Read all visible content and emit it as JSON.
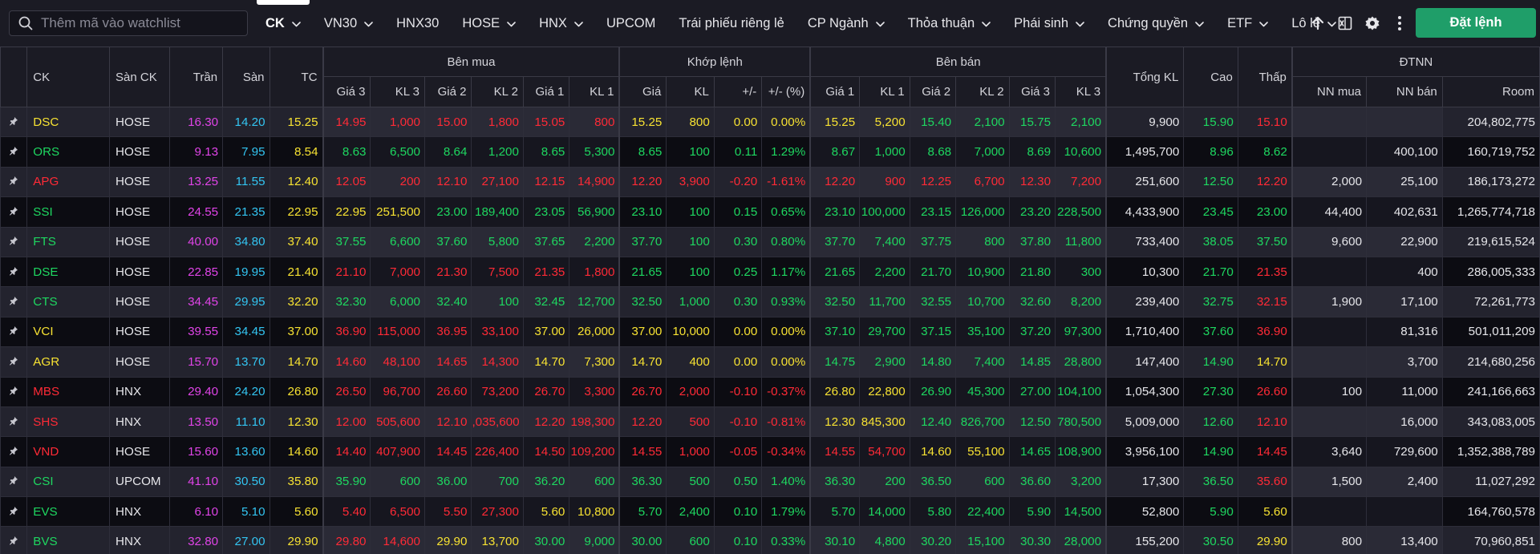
{
  "search": {
    "placeholder": "Thêm mã vào watchlist"
  },
  "tabs": [
    {
      "label": "CK",
      "dropdown": true,
      "active": true
    },
    {
      "label": "VN30",
      "dropdown": true
    },
    {
      "label": "HNX30",
      "dropdown": false
    },
    {
      "label": "HOSE",
      "dropdown": true
    },
    {
      "label": "HNX",
      "dropdown": true
    },
    {
      "label": "UPCOM",
      "dropdown": false
    },
    {
      "label": "Trái phiếu riêng lẻ",
      "dropdown": false
    },
    {
      "label": "CP Ngành",
      "dropdown": true
    },
    {
      "label": "Thỏa thuận",
      "dropdown": true
    },
    {
      "label": "Phái sinh",
      "dropdown": true
    },
    {
      "label": "Chứng quyền",
      "dropdown": true
    },
    {
      "label": "ETF",
      "dropdown": true
    },
    {
      "label": "Lô lẻ",
      "dropdown": true
    }
  ],
  "toolbar": {
    "icons": [
      "upload-arrow-icon",
      "excel-export-icon",
      "gear-icon",
      "more-vertical-icon"
    ],
    "order_label": "Đặt lệnh",
    "order_color": "#1f9e69"
  },
  "colors": {
    "up": "#1ed760",
    "down": "#ff2a36",
    "reference": "#f7e232",
    "ceiling": "#e044e8",
    "floor": "#33c5f2"
  },
  "table": {
    "group_headers": {
      "buy": "Bên mua",
      "match": "Khớp lệnh",
      "sell": "Bên bán",
      "foreign": "ĐTNN"
    },
    "columns": {
      "symbol": "CK",
      "exchange": "Sàn CK",
      "ceiling": "Trần",
      "floor": "Sàn",
      "reference": "TC",
      "buy": [
        "Giá 3",
        "KL 3",
        "Giá 2",
        "KL 2",
        "Giá 1",
        "KL 1"
      ],
      "match": [
        "Giá",
        "KL",
        "+/-",
        "+/- (%)"
      ],
      "sell": [
        "Giá 1",
        "KL 1",
        "Giá 2",
        "KL 2",
        "Giá 3",
        "KL 3"
      ],
      "total": "Tổng KL",
      "high": "Cao",
      "low": "Thấp",
      "foreign": [
        "NN mua",
        "NN bán",
        "Room"
      ]
    },
    "rows": [
      {
        "sym": "DSC",
        "exch": "HOSE",
        "ceil": "16.30",
        "floor": "14.20",
        "ref": "15.25",
        "b3p": "14.95",
        "b3v": "1,000",
        "b2p": "15.00",
        "b2v": "1,800",
        "b1p": "15.05",
        "b1v": "800",
        "mp": "15.25",
        "mv": "800",
        "chg": "0.00",
        "pct": "0.00%",
        "s1p": "15.25",
        "s1v": "5,200",
        "s2p": "15.40",
        "s2v": "2,100",
        "s3p": "15.75",
        "s3v": "2,100",
        "tot": "9,900",
        "hi": "15.90",
        "lo": "15.10",
        "nnb": "",
        "nns": "",
        "room": "204,802,775"
      },
      {
        "sym": "ORS",
        "exch": "HOSE",
        "ceil": "9.13",
        "floor": "7.95",
        "ref": "8.54",
        "b3p": "8.63",
        "b3v": "6,500",
        "b2p": "8.64",
        "b2v": "1,200",
        "b1p": "8.65",
        "b1v": "5,300",
        "mp": "8.65",
        "mv": "100",
        "chg": "0.11",
        "pct": "1.29%",
        "s1p": "8.67",
        "s1v": "1,000",
        "s2p": "8.68",
        "s2v": "7,000",
        "s3p": "8.69",
        "s3v": "10,600",
        "tot": "1,495,700",
        "hi": "8.96",
        "lo": "8.62",
        "nnb": "",
        "nns": "400,100",
        "room": "160,719,752"
      },
      {
        "sym": "APG",
        "exch": "HOSE",
        "ceil": "13.25",
        "floor": "11.55",
        "ref": "12.40",
        "b3p": "12.05",
        "b3v": "200",
        "b2p": "12.10",
        "b2v": "27,100",
        "b1p": "12.15",
        "b1v": "14,900",
        "mp": "12.20",
        "mv": "3,900",
        "chg": "-0.20",
        "pct": "-1.61%",
        "s1p": "12.20",
        "s1v": "900",
        "s2p": "12.25",
        "s2v": "6,700",
        "s3p": "12.30",
        "s3v": "7,200",
        "tot": "251,600",
        "hi": "12.50",
        "lo": "12.20",
        "nnb": "2,000",
        "nns": "25,100",
        "room": "186,173,272"
      },
      {
        "sym": "SSI",
        "exch": "HOSE",
        "ceil": "24.55",
        "floor": "21.35",
        "ref": "22.95",
        "b3p": "22.95",
        "b3v": "251,500",
        "b2p": "23.00",
        "b2v": "189,400",
        "b1p": "23.05",
        "b1v": "56,900",
        "mp": "23.10",
        "mv": "100",
        "chg": "0.15",
        "pct": "0.65%",
        "s1p": "23.10",
        "s1v": "100,000",
        "s2p": "23.15",
        "s2v": "126,000",
        "s3p": "23.20",
        "s3v": "228,500",
        "tot": "4,433,900",
        "hi": "23.45",
        "lo": "23.00",
        "nnb": "44,400",
        "nns": "402,631",
        "room": "1,265,774,718"
      },
      {
        "sym": "FTS",
        "exch": "HOSE",
        "ceil": "40.00",
        "floor": "34.80",
        "ref": "37.40",
        "b3p": "37.55",
        "b3v": "6,600",
        "b2p": "37.60",
        "b2v": "5,800",
        "b1p": "37.65",
        "b1v": "2,200",
        "mp": "37.70",
        "mv": "100",
        "chg": "0.30",
        "pct": "0.80%",
        "s1p": "37.70",
        "s1v": "7,400",
        "s2p": "37.75",
        "s2v": "800",
        "s3p": "37.80",
        "s3v": "11,800",
        "tot": "733,400",
        "hi": "38.05",
        "lo": "37.50",
        "nnb": "9,600",
        "nns": "22,900",
        "room": "219,615,524"
      },
      {
        "sym": "DSE",
        "exch": "HOSE",
        "ceil": "22.85",
        "floor": "19.95",
        "ref": "21.40",
        "b3p": "21.10",
        "b3v": "7,000",
        "b2p": "21.30",
        "b2v": "7,500",
        "b1p": "21.35",
        "b1v": "1,800",
        "mp": "21.65",
        "mv": "100",
        "chg": "0.25",
        "pct": "1.17%",
        "s1p": "21.65",
        "s1v": "2,200",
        "s2p": "21.70",
        "s2v": "10,900",
        "s3p": "21.80",
        "s3v": "300",
        "tot": "10,300",
        "hi": "21.70",
        "lo": "21.35",
        "nnb": "",
        "nns": "400",
        "room": "286,005,333"
      },
      {
        "sym": "CTS",
        "exch": "HOSE",
        "ceil": "34.45",
        "floor": "29.95",
        "ref": "32.20",
        "b3p": "32.30",
        "b3v": "6,000",
        "b2p": "32.40",
        "b2v": "100",
        "b1p": "32.45",
        "b1v": "12,700",
        "mp": "32.50",
        "mv": "1,000",
        "chg": "0.30",
        "pct": "0.93%",
        "s1p": "32.50",
        "s1v": "11,700",
        "s2p": "32.55",
        "s2v": "10,700",
        "s3p": "32.60",
        "s3v": "8,200",
        "tot": "239,400",
        "hi": "32.75",
        "lo": "32.15",
        "nnb": "1,900",
        "nns": "17,100",
        "room": "72,261,773"
      },
      {
        "sym": "VCI",
        "exch": "HOSE",
        "ceil": "39.55",
        "floor": "34.45",
        "ref": "37.00",
        "b3p": "36.90",
        "b3v": "115,000",
        "b2p": "36.95",
        "b2v": "33,100",
        "b1p": "37.00",
        "b1v": "26,000",
        "mp": "37.00",
        "mv": "10,000",
        "chg": "0.00",
        "pct": "0.00%",
        "s1p": "37.10",
        "s1v": "29,700",
        "s2p": "37.15",
        "s2v": "35,100",
        "s3p": "37.20",
        "s3v": "97,300",
        "tot": "1,710,400",
        "hi": "37.60",
        "lo": "36.90",
        "nnb": "",
        "nns": "81,316",
        "room": "501,011,209"
      },
      {
        "sym": "AGR",
        "exch": "HOSE",
        "ceil": "15.70",
        "floor": "13.70",
        "ref": "14.70",
        "b3p": "14.60",
        "b3v": "48,100",
        "b2p": "14.65",
        "b2v": "14,300",
        "b1p": "14.70",
        "b1v": "7,300",
        "mp": "14.70",
        "mv": "400",
        "chg": "0.00",
        "pct": "0.00%",
        "s1p": "14.75",
        "s1v": "2,900",
        "s2p": "14.80",
        "s2v": "7,400",
        "s3p": "14.85",
        "s3v": "28,800",
        "tot": "147,400",
        "hi": "14.90",
        "lo": "14.70",
        "nnb": "",
        "nns": "3,700",
        "room": "214,680,256"
      },
      {
        "sym": "MBS",
        "exch": "HNX",
        "ceil": "29.40",
        "floor": "24.20",
        "ref": "26.80",
        "b3p": "26.50",
        "b3v": "96,700",
        "b2p": "26.60",
        "b2v": "73,200",
        "b1p": "26.70",
        "b1v": "3,300",
        "mp": "26.70",
        "mv": "2,000",
        "chg": "-0.10",
        "pct": "-0.37%",
        "s1p": "26.80",
        "s1v": "22,800",
        "s2p": "26.90",
        "s2v": "45,300",
        "s3p": "27.00",
        "s3v": "104,100",
        "tot": "1,054,300",
        "hi": "27.30",
        "lo": "26.60",
        "nnb": "100",
        "nns": "11,000",
        "room": "241,166,663"
      },
      {
        "sym": "SHS",
        "exch": "HNX",
        "ceil": "13.50",
        "floor": "11.10",
        "ref": "12.30",
        "b3p": "12.00",
        "b3v": "505,600",
        "b2p": "12.10",
        "b2v": ",035,600",
        "b1p": "12.20",
        "b1v": "198,300",
        "mp": "12.20",
        "mv": "500",
        "chg": "-0.10",
        "pct": "-0.81%",
        "s1p": "12.30",
        "s1v": "845,300",
        "s2p": "12.40",
        "s2v": "826,700",
        "s3p": "12.50",
        "s3v": "780,500",
        "tot": "5,009,000",
        "hi": "12.60",
        "lo": "12.10",
        "nnb": "",
        "nns": "16,000",
        "room": "343,083,005"
      },
      {
        "sym": "VND",
        "exch": "HOSE",
        "ceil": "15.60",
        "floor": "13.60",
        "ref": "14.60",
        "b3p": "14.40",
        "b3v": "407,900",
        "b2p": "14.45",
        "b2v": "226,400",
        "b1p": "14.50",
        "b1v": "109,200",
        "mp": "14.55",
        "mv": "1,000",
        "chg": "-0.05",
        "pct": "-0.34%",
        "s1p": "14.55",
        "s1v": "54,700",
        "s2p": "14.60",
        "s2v": "55,100",
        "s3p": "14.65",
        "s3v": "108,900",
        "tot": "3,956,100",
        "hi": "14.90",
        "lo": "14.45",
        "nnb": "3,640",
        "nns": "729,600",
        "room": "1,352,388,789"
      },
      {
        "sym": "CSI",
        "exch": "UPCOM",
        "ceil": "41.10",
        "floor": "30.50",
        "ref": "35.80",
        "b3p": "35.90",
        "b3v": "600",
        "b2p": "36.00",
        "b2v": "700",
        "b1p": "36.20",
        "b1v": "600",
        "mp": "36.30",
        "mv": "500",
        "chg": "0.50",
        "pct": "1.40%",
        "s1p": "36.30",
        "s1v": "200",
        "s2p": "36.50",
        "s2v": "600",
        "s3p": "36.60",
        "s3v": "3,200",
        "tot": "17,300",
        "hi": "36.50",
        "lo": "35.60",
        "nnb": "1,500",
        "nns": "2,400",
        "room": "11,027,292"
      },
      {
        "sym": "EVS",
        "exch": "HNX",
        "ceil": "6.10",
        "floor": "5.10",
        "ref": "5.60",
        "b3p": "5.40",
        "b3v": "6,500",
        "b2p": "5.50",
        "b2v": "27,300",
        "b1p": "5.60",
        "b1v": "10,800",
        "mp": "5.70",
        "mv": "2,400",
        "chg": "0.10",
        "pct": "1.79%",
        "s1p": "5.70",
        "s1v": "14,000",
        "s2p": "5.80",
        "s2v": "22,400",
        "s3p": "5.90",
        "s3v": "14,500",
        "tot": "52,800",
        "hi": "5.90",
        "lo": "5.60",
        "nnb": "",
        "nns": "",
        "room": "164,760,578"
      },
      {
        "sym": "BVS",
        "exch": "HNX",
        "ceil": "32.80",
        "floor": "27.00",
        "ref": "29.90",
        "b3p": "29.80",
        "b3v": "14,600",
        "b2p": "29.90",
        "b2v": "13,700",
        "b1p": "30.00",
        "b1v": "9,000",
        "mp": "30.00",
        "mv": "600",
        "chg": "0.10",
        "pct": "0.33%",
        "s1p": "30.10",
        "s1v": "4,800",
        "s2p": "30.20",
        "s2v": "15,100",
        "s3p": "30.30",
        "s3v": "28,000",
        "tot": "155,200",
        "hi": "30.50",
        "lo": "29.90",
        "nnb": "800",
        "nns": "13,400",
        "room": "70,960,851"
      }
    ]
  }
}
